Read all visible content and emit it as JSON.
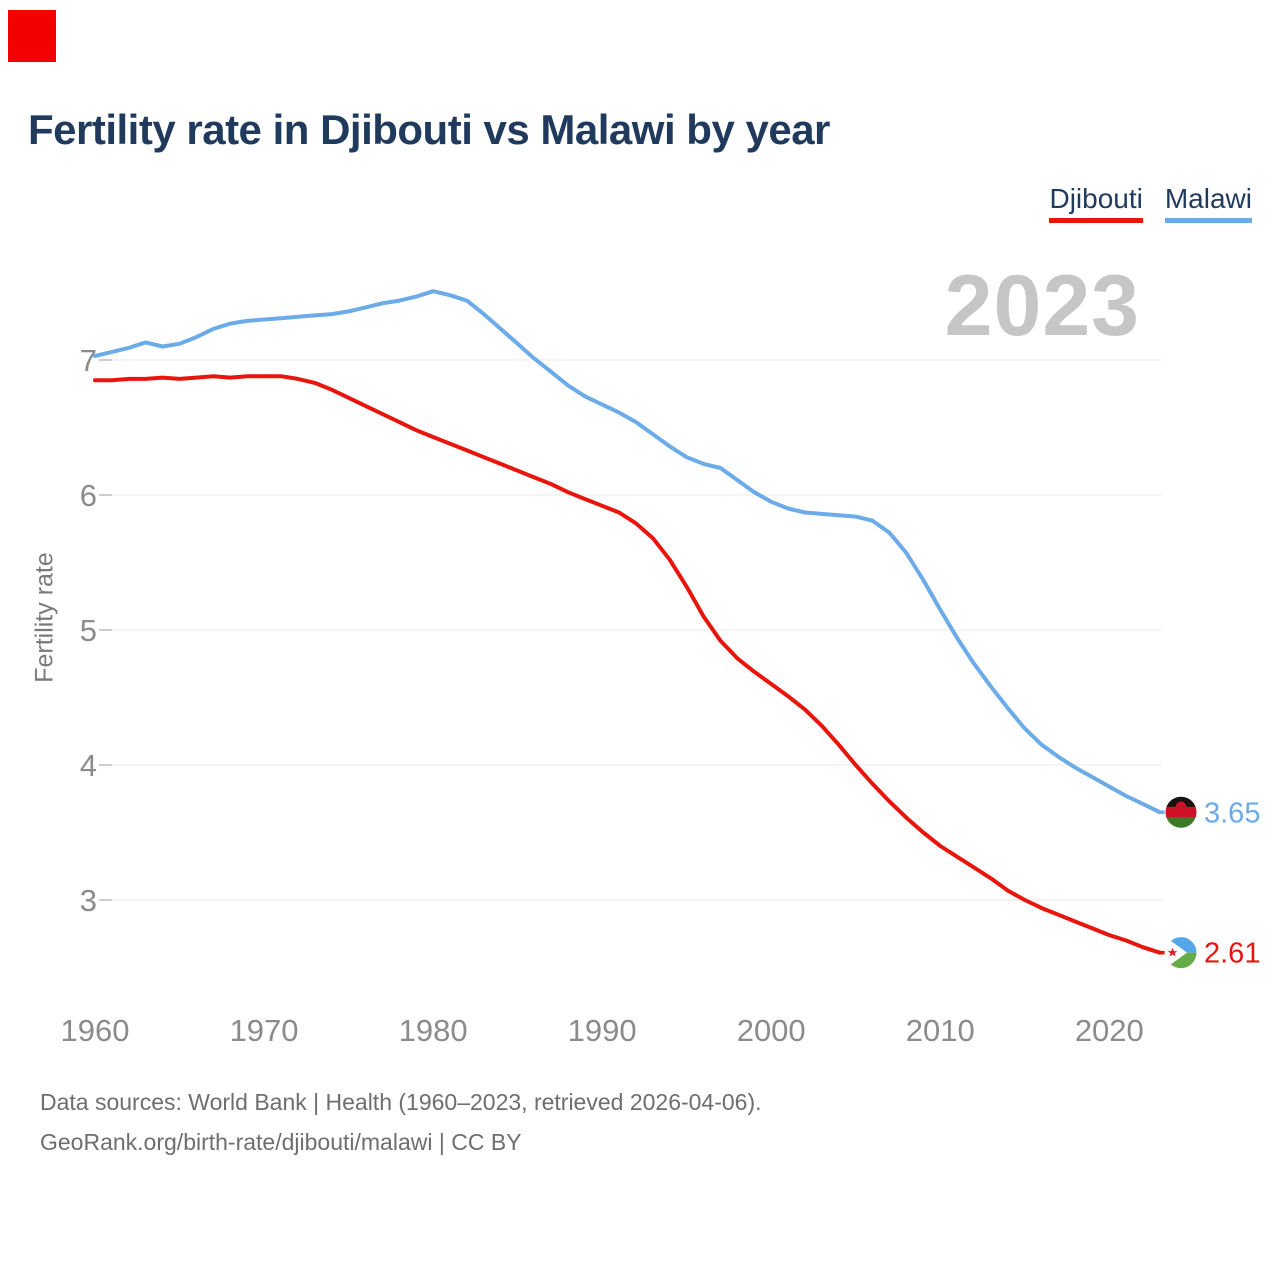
{
  "title": "Fertility rate in Djibouti vs Malawi by year",
  "marker": {
    "color": "#f40000"
  },
  "watermark": "2023",
  "legend": [
    {
      "label": "Djibouti",
      "color": "#e8150c"
    },
    {
      "label": "Malawi",
      "color": "#6babe8"
    }
  ],
  "footer": {
    "line1": "Data sources: World Bank | Health (1960–2023, retrieved 2026-04-06).",
    "line2": "GeoRank.org/birth-rate/djibouti/malawi | CC BY"
  },
  "chart_data": {
    "type": "line",
    "title": "Fertility rate in Djibouti vs Malawi by year",
    "xlabel": "",
    "ylabel": "Fertility rate",
    "x_start": 1960,
    "x_end": 2023,
    "x_ticks": [
      1960,
      1970,
      1980,
      1990,
      2000,
      2010,
      2020
    ],
    "y_ticks": [
      3,
      4,
      5,
      6,
      7
    ],
    "ylim": [
      2.4,
      7.6
    ],
    "grid": "horizontal-only",
    "legend_position": "top-right",
    "watermark_year": "2023",
    "colors": {
      "grid": "#e9e9e9",
      "tick_text": "#8b8b8b",
      "title": "#1f3a5c",
      "watermark": "#c6c6c6"
    },
    "series": [
      {
        "name": "Djibouti",
        "color": "#e8150c",
        "end_label": "2.61",
        "values": [
          6.85,
          6.85,
          6.86,
          6.86,
          6.87,
          6.86,
          6.87,
          6.88,
          6.87,
          6.88,
          6.88,
          6.88,
          6.86,
          6.83,
          6.78,
          6.72,
          6.66,
          6.6,
          6.54,
          6.48,
          6.43,
          6.38,
          6.33,
          6.28,
          6.23,
          6.18,
          6.13,
          6.08,
          6.02,
          5.97,
          5.92,
          5.87,
          5.79,
          5.68,
          5.52,
          5.32,
          5.1,
          4.92,
          4.79,
          4.69,
          4.6,
          4.51,
          4.41,
          4.29,
          4.15,
          4.0,
          3.86,
          3.73,
          3.61,
          3.5,
          3.4,
          3.32,
          3.24,
          3.16,
          3.07,
          3.0,
          2.94,
          2.89,
          2.84,
          2.79,
          2.74,
          2.7,
          2.65,
          2.61
        ]
      },
      {
        "name": "Malawi",
        "color": "#6babe8",
        "end_label": "3.65",
        "values": [
          7.03,
          7.06,
          7.09,
          7.13,
          7.1,
          7.12,
          7.17,
          7.23,
          7.27,
          7.29,
          7.3,
          7.31,
          7.32,
          7.33,
          7.34,
          7.36,
          7.39,
          7.42,
          7.44,
          7.47,
          7.51,
          7.48,
          7.44,
          7.34,
          7.23,
          7.12,
          7.01,
          6.91,
          6.81,
          6.73,
          6.67,
          6.61,
          6.54,
          6.45,
          6.36,
          6.28,
          6.23,
          6.2,
          6.11,
          6.02,
          5.95,
          5.9,
          5.87,
          5.86,
          5.85,
          5.84,
          5.81,
          5.72,
          5.57,
          5.37,
          5.15,
          4.94,
          4.75,
          4.58,
          4.42,
          4.27,
          4.15,
          4.06,
          3.98,
          3.91,
          3.84,
          3.77,
          3.71,
          3.65
        ]
      }
    ]
  }
}
